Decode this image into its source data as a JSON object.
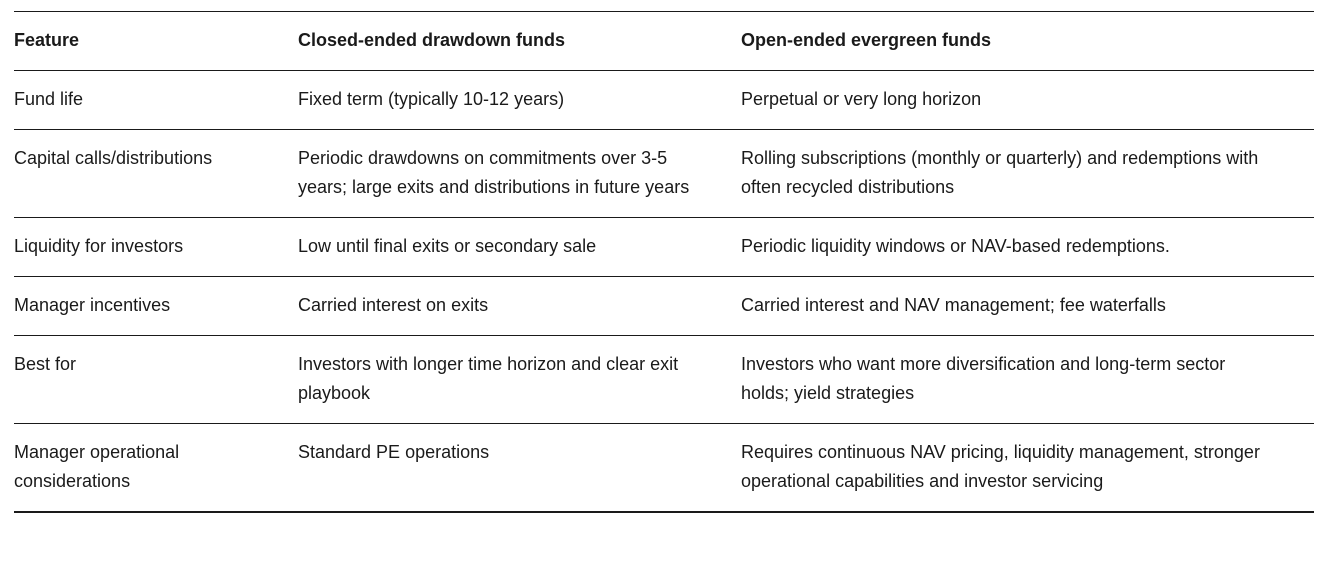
{
  "colors": {
    "text": "#1a1a1a",
    "border": "#1a1a1a",
    "background": "#ffffff"
  },
  "table": {
    "headers": {
      "feature": "Feature",
      "closed": "Closed-ended drawdown funds",
      "open": "Open-ended evergreen funds"
    },
    "rows": [
      {
        "feature": "Fund life",
        "closed": "Fixed term (typically 10-12 years)",
        "open": "Perpetual or very long horizon"
      },
      {
        "feature": "Capital calls/distributions",
        "closed": "Periodic drawdowns on commitments over 3-5 years; large exits and distributions in future years",
        "open": "Rolling subscriptions (monthly or quarterly) and redemptions with often recycled distributions"
      },
      {
        "feature": "Liquidity for investors",
        "closed": "Low until final exits or secondary sale",
        "open": "Periodic liquidity windows or NAV-based redemptions."
      },
      {
        "feature": "Manager incentives",
        "closed": "Carried interest on exits",
        "open": "Carried interest and NAV management; fee waterfalls"
      },
      {
        "feature": "Best for",
        "closed": "Investors with longer time horizon and clear exit playbook",
        "open": "Investors who want more diversification and long-term sector holds; yield strategies"
      },
      {
        "feature": "Manager operational considerations",
        "closed": "Standard PE operations",
        "open": "Requires continuous NAV pricing, liquidity management, stronger operational capabilities and investor servicing"
      }
    ]
  }
}
